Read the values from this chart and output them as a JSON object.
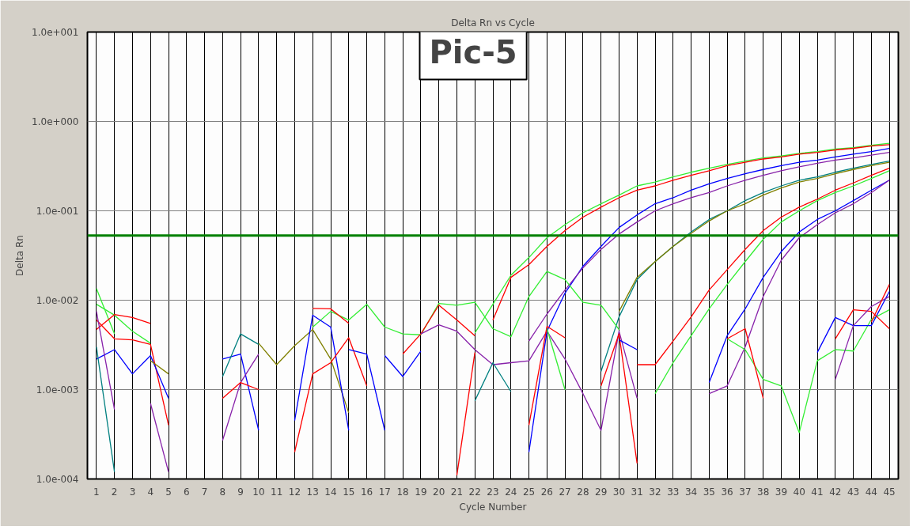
{
  "chart_data": {
    "type": "line",
    "title": "Delta Rn vs Cycle",
    "xlabel": "Cycle Number",
    "ylabel": "Delta Rn",
    "log": "y",
    "grid": true,
    "xlim": [
      0.5,
      45.5
    ],
    "xticks": [
      1,
      2,
      3,
      4,
      5,
      6,
      7,
      8,
      9,
      10,
      11,
      12,
      13,
      14,
      15,
      16,
      17,
      18,
      19,
      20,
      21,
      22,
      23,
      24,
      25,
      26,
      27,
      28,
      29,
      30,
      31,
      32,
      33,
      34,
      35,
      36,
      37,
      38,
      39,
      40,
      41,
      42,
      43,
      44,
      45
    ],
    "ylim": [
      0.0001,
      10
    ],
    "yticks": [
      {
        "value": 0.0001,
        "label": "1.0e-004"
      },
      {
        "value": 0.001,
        "label": "1.0e-003"
      },
      {
        "value": 0.01,
        "label": "1.0e-002"
      },
      {
        "value": 0.1,
        "label": "1.0e-001"
      },
      {
        "value": 1,
        "label": "1.0e+000"
      },
      {
        "value": 10,
        "label": "1.0e+001"
      }
    ],
    "ref_lines": [
      {
        "axis": "y",
        "value": 0.053,
        "label": null,
        "color": "#008000"
      }
    ],
    "annotations": [
      "Pic-5"
    ],
    "series": [
      {
        "color": "#33ee33",
        "x": [
          22,
          23,
          24,
          25,
          26,
          27,
          28,
          29,
          30,
          31,
          32,
          33,
          34,
          35,
          36,
          37,
          38,
          39,
          40,
          41,
          42,
          43,
          44,
          45
        ],
        "values": [
          0.0043,
          0.009,
          0.019,
          0.03,
          0.05,
          0.07,
          0.095,
          0.12,
          0.15,
          0.19,
          0.21,
          0.24,
          0.27,
          0.3,
          0.33,
          0.36,
          0.39,
          0.41,
          0.44,
          0.46,
          0.49,
          0.51,
          0.54,
          0.57
        ]
      },
      {
        "color": "#ff0000",
        "x": [
          23,
          24,
          25,
          26,
          27,
          28,
          29,
          30,
          31,
          32,
          33,
          34,
          35,
          36,
          37,
          38,
          39,
          40,
          41,
          42,
          43,
          44,
          45
        ],
        "values": [
          0.006,
          0.018,
          0.025,
          0.04,
          0.06,
          0.085,
          0.11,
          0.14,
          0.17,
          0.19,
          0.22,
          0.25,
          0.28,
          0.32,
          0.35,
          0.38,
          0.4,
          0.43,
          0.45,
          0.48,
          0.5,
          0.53,
          0.55
        ]
      },
      {
        "color": "#0000ff",
        "x": [
          25,
          26,
          27,
          28,
          29,
          30,
          31,
          32,
          33,
          34,
          35,
          36,
          37,
          38,
          39,
          40,
          41,
          42,
          43,
          44,
          45
        ],
        "values": [
          0.0002,
          0.0045,
          0.012,
          0.024,
          0.04,
          0.065,
          0.09,
          0.12,
          0.14,
          0.17,
          0.2,
          0.23,
          0.26,
          0.29,
          0.32,
          0.35,
          0.37,
          0.4,
          0.43,
          0.46,
          0.5
        ]
      },
      {
        "color": "#8822aa",
        "x": [
          25,
          26,
          27,
          28,
          29,
          30,
          31,
          32,
          33,
          34,
          35,
          36,
          37,
          38,
          39,
          40,
          41,
          42,
          43,
          44,
          45
        ],
        "values": [
          0.0035,
          0.007,
          0.013,
          0.023,
          0.037,
          0.055,
          0.075,
          0.1,
          0.12,
          0.14,
          0.16,
          0.19,
          0.22,
          0.25,
          0.28,
          0.31,
          0.34,
          0.37,
          0.39,
          0.42,
          0.45
        ]
      },
      {
        "color": "#008080",
        "x": [
          29,
          30,
          31,
          32,
          33,
          34,
          35,
          36,
          37,
          38,
          39,
          40,
          41,
          42,
          43,
          44,
          45
        ],
        "values": [
          0.0016,
          0.0065,
          0.017,
          0.027,
          0.04,
          0.058,
          0.08,
          0.1,
          0.13,
          0.16,
          0.19,
          0.22,
          0.24,
          0.27,
          0.3,
          0.33,
          0.36
        ]
      },
      {
        "color": "#808000",
        "x": [
          30,
          31,
          32,
          33,
          34,
          35,
          36,
          37,
          38,
          39,
          40,
          41,
          42,
          43,
          44,
          45
        ],
        "values": [
          0.0075,
          0.018,
          0.027,
          0.04,
          0.056,
          0.077,
          0.1,
          0.12,
          0.15,
          0.18,
          0.21,
          0.23,
          0.26,
          0.29,
          0.32,
          0.35
        ]
      },
      {
        "color": "#ff0000",
        "x": [
          31,
          32,
          33,
          34,
          35,
          36,
          37,
          38,
          39,
          40,
          41,
          42,
          43,
          44,
          45
        ],
        "values": [
          0.0019,
          0.0019,
          0.0035,
          0.0065,
          0.013,
          0.022,
          0.037,
          0.06,
          0.085,
          0.11,
          0.135,
          0.17,
          0.205,
          0.25,
          0.3
        ]
      },
      {
        "color": "#33ee33",
        "x": [
          32,
          33,
          34,
          35,
          36,
          37,
          38,
          39,
          40,
          41,
          42,
          43,
          44,
          45
        ],
        "values": [
          0.0009,
          0.002,
          0.004,
          0.008,
          0.015,
          0.027,
          0.048,
          0.075,
          0.1,
          0.13,
          0.16,
          0.19,
          0.23,
          0.28
        ]
      },
      {
        "color": "#0000ff",
        "x": [
          35,
          36,
          37,
          38,
          39,
          40,
          41,
          42,
          43,
          44,
          45
        ],
        "values": [
          0.0012,
          0.004,
          0.008,
          0.018,
          0.035,
          0.058,
          0.08,
          0.1,
          0.13,
          0.17,
          0.22
        ]
      },
      {
        "color": "#8822aa",
        "x": [
          35,
          36,
          37,
          38,
          39,
          40,
          41,
          42,
          43,
          44,
          45
        ],
        "values": [
          0.0009,
          0.0011,
          0.003,
          0.011,
          0.028,
          0.05,
          0.07,
          0.095,
          0.12,
          0.16,
          0.22
        ]
      },
      {
        "color": "#33ee33",
        "x": [
          13,
          14,
          15,
          16,
          17,
          18,
          19,
          20,
          21,
          22,
          23,
          24,
          25,
          26,
          27,
          28,
          29,
          30
        ],
        "values": [
          0.005,
          0.0075,
          0.006,
          0.009,
          0.005,
          0.0042,
          0.0041,
          0.0092,
          0.0088,
          0.0095,
          0.0048,
          0.0039,
          0.011,
          0.021,
          0.017,
          0.0095,
          0.0088,
          0.0047
        ]
      },
      {
        "color": "#33ee33",
        "x": [
          36,
          37,
          38,
          39,
          40,
          41,
          42,
          43,
          44,
          45
        ],
        "values": [
          0.0037,
          0.0028,
          0.0013,
          0.0011,
          0.00033,
          0.0021,
          0.0028,
          0.0027,
          0.0061,
          0.0078
        ]
      },
      {
        "color": "#33ee33",
        "x": [
          1,
          2
        ],
        "values": [
          0.0135,
          0.0042
        ]
      },
      {
        "color": "#33ee33",
        "x": [
          1,
          2,
          3,
          4
        ],
        "values": [
          0.009,
          0.0068,
          0.0045,
          0.0033
        ]
      },
      {
        "color": "#ff0000",
        "x": [
          1,
          2,
          3,
          4
        ],
        "values": [
          0.0047,
          0.0069,
          0.0064,
          0.0055
        ]
      },
      {
        "color": "#ff0000",
        "x": [
          1,
          2,
          3,
          4,
          5
        ],
        "values": [
          0.006,
          0.0037,
          0.0036,
          0.0032,
          0.0004
        ]
      },
      {
        "color": "#0000ff",
        "x": [
          1,
          2,
          3,
          4,
          5
        ],
        "values": [
          0.0022,
          0.0028,
          0.0015,
          0.0024,
          0.0008
        ]
      },
      {
        "color": "#008080",
        "x": [
          1,
          2
        ],
        "values": [
          0.003,
          0.00012
        ]
      },
      {
        "color": "#8822aa",
        "x": [
          1,
          2
        ],
        "values": [
          0.0075,
          0.0006
        ]
      },
      {
        "color": "#8822aa",
        "x": [
          4,
          5
        ],
        "values": [
          0.0007,
          0.00012
        ]
      },
      {
        "color": "#808000",
        "x": [
          4,
          5
        ],
        "values": [
          0.0021,
          0.0015
        ]
      },
      {
        "color": "#808000",
        "x": [
          10,
          11,
          12,
          13,
          14,
          15
        ],
        "values": [
          0.0033,
          0.0019,
          0.0031,
          0.0047,
          0.0022,
          0.00055
        ]
      },
      {
        "color": "#0000ff",
        "x": [
          8,
          9,
          10
        ],
        "values": [
          0.0022,
          0.0025,
          0.00035
        ]
      },
      {
        "color": "#008080",
        "x": [
          8,
          9,
          10
        ],
        "values": [
          0.0014,
          0.0042,
          0.0032
        ]
      },
      {
        "color": "#8822aa",
        "x": [
          8,
          9,
          10
        ],
        "values": [
          0.00027,
          0.0012,
          0.0025
        ]
      },
      {
        "color": "#ff0000",
        "x": [
          8,
          9,
          10
        ],
        "values": [
          0.0008,
          0.0012,
          0.001
        ]
      },
      {
        "color": "#0000ff",
        "x": [
          12,
          13,
          14,
          15
        ],
        "values": [
          0.00045,
          0.0068,
          0.005,
          0.00035
        ]
      },
      {
        "color": "#ff0000",
        "x": [
          12,
          13,
          14,
          15,
          16
        ],
        "values": [
          0.0002,
          0.0015,
          0.002,
          0.0038,
          0.0011
        ]
      },
      {
        "color": "#ff0000",
        "x": [
          13,
          14,
          15
        ],
        "values": [
          0.0081,
          0.008,
          0.0055
        ]
      },
      {
        "color": "#0000ff",
        "x": [
          15,
          16,
          17
        ],
        "values": [
          0.0028,
          0.0025,
          0.00035
        ]
      },
      {
        "color": "#0000ff",
        "x": [
          17,
          18,
          19
        ],
        "values": [
          0.0024,
          0.0014,
          0.0027
        ]
      },
      {
        "color": "#ff0000",
        "x": [
          18,
          19,
          20,
          21,
          22
        ],
        "values": [
          0.0025,
          0.0042,
          0.0088,
          0.006,
          0.004
        ]
      },
      {
        "color": "#8822aa",
        "x": [
          19,
          20,
          21,
          22,
          23,
          24,
          25,
          26,
          27,
          28,
          29,
          30,
          31
        ],
        "values": [
          0.0042,
          0.0053,
          0.0045,
          0.0028,
          0.0019,
          0.002,
          0.0021,
          0.0045,
          0.0022,
          0.0009,
          0.00035,
          0.0045,
          0.0008
        ]
      },
      {
        "color": "#ff0000",
        "x": [
          21,
          22
        ],
        "values": [
          0.00011,
          0.0026
        ]
      },
      {
        "color": "#008080",
        "x": [
          22,
          23,
          24
        ],
        "values": [
          0.00075,
          0.002,
          0.00095
        ]
      },
      {
        "color": "#ff0000",
        "x": [
          25,
          26,
          27
        ],
        "values": [
          0.0004,
          0.0051,
          0.0038
        ]
      },
      {
        "color": "#33ee33",
        "x": [
          26,
          27
        ],
        "values": [
          0.0048,
          0.001
        ]
      },
      {
        "color": "#ff0000",
        "x": [
          29,
          30,
          31
        ],
        "values": [
          0.0011,
          0.0042,
          0.00015
        ]
      },
      {
        "color": "#0000ff",
        "x": [
          30,
          31
        ],
        "values": [
          0.0036,
          0.0028
        ]
      },
      {
        "color": "#ff0000",
        "x": [
          36,
          37,
          38
        ],
        "values": [
          0.0037,
          0.0048,
          0.0008
        ]
      },
      {
        "color": "#0000ff",
        "x": [
          41,
          42,
          43,
          44,
          45
        ],
        "values": [
          0.0026,
          0.0064,
          0.0052,
          0.0052,
          0.0125
        ]
      },
      {
        "color": "#ff0000",
        "x": [
          42,
          43,
          44,
          45
        ],
        "values": [
          0.0037,
          0.0078,
          0.0075,
          0.0048
        ]
      },
      {
        "color": "#8822aa",
        "x": [
          42,
          43,
          44,
          45
        ],
        "values": [
          0.0013,
          0.0052,
          0.0085,
          0.011
        ]
      },
      {
        "color": "#ff0000",
        "x": [
          44,
          45
        ],
        "values": [
          0.0057,
          0.015
        ]
      }
    ]
  }
}
